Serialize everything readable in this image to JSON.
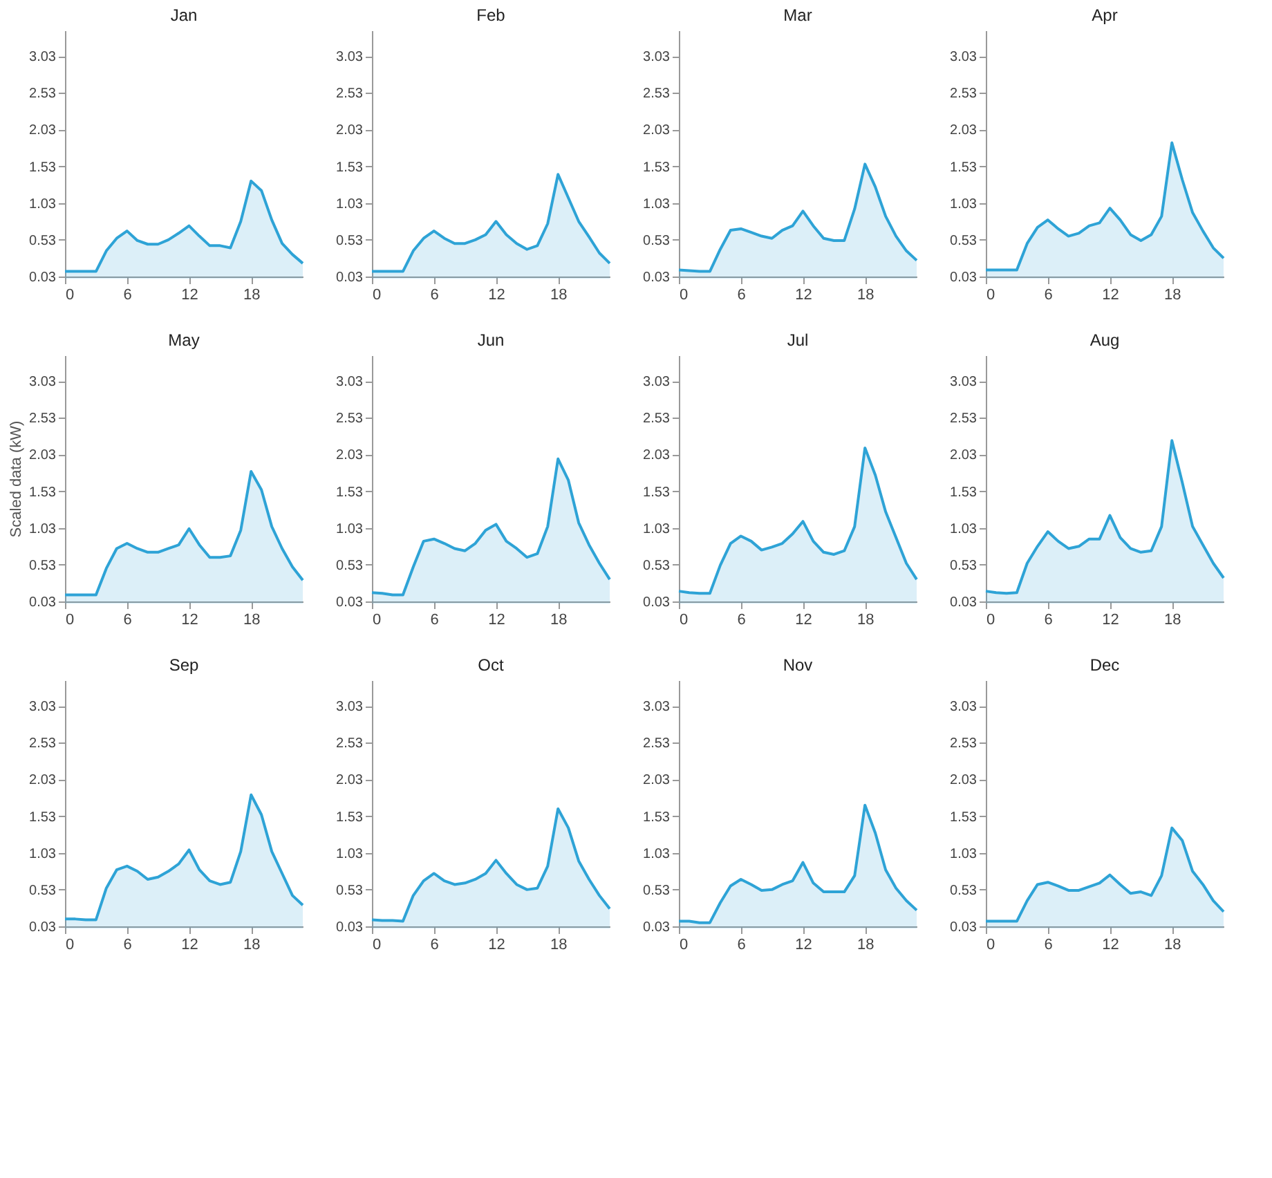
{
  "chart_data": [
    {
      "type": "area",
      "title": "Jan",
      "x": [
        0,
        1,
        2,
        3,
        4,
        5,
        6,
        7,
        8,
        9,
        10,
        11,
        12,
        13,
        14,
        15,
        16,
        17,
        18,
        19,
        20,
        21,
        22,
        23
      ],
      "series": [
        {
          "color": "#2ea3d6",
          "values": [
            0.1,
            0.1,
            0.1,
            0.1,
            0.38,
            0.55,
            0.65,
            0.52,
            0.47,
            0.47,
            0.53,
            0.62,
            0.72,
            0.58,
            0.45,
            0.45,
            0.42,
            0.78,
            1.33,
            1.2,
            0.8,
            0.48,
            0.33,
            0.21
          ]
        }
      ],
      "xlim": [
        0,
        23
      ],
      "xticks": [
        0,
        6,
        12,
        18
      ],
      "ylim": [
        0.03,
        3.38
      ],
      "yticks": [
        0.03,
        0.53,
        1.03,
        1.53,
        2.03,
        2.53,
        3.03
      ],
      "grid": false
    },
    {
      "type": "area",
      "title": "Feb",
      "x": [
        0,
        1,
        2,
        3,
        4,
        5,
        6,
        7,
        8,
        9,
        10,
        11,
        12,
        13,
        14,
        15,
        16,
        17,
        18,
        19,
        20,
        21,
        22,
        23
      ],
      "series": [
        {
          "color": "#2ea3d6",
          "values": [
            0.1,
            0.1,
            0.1,
            0.1,
            0.38,
            0.55,
            0.65,
            0.55,
            0.48,
            0.48,
            0.53,
            0.6,
            0.78,
            0.6,
            0.48,
            0.4,
            0.45,
            0.75,
            1.42,
            1.1,
            0.78,
            0.57,
            0.35,
            0.21
          ]
        }
      ],
      "xlim": [
        0,
        23
      ],
      "xticks": [
        0,
        6,
        12,
        18
      ],
      "ylim": [
        0.03,
        3.38
      ],
      "yticks": [
        0.03,
        0.53,
        1.03,
        1.53,
        2.03,
        2.53,
        3.03
      ],
      "grid": false
    },
    {
      "type": "area",
      "title": "Mar",
      "x": [
        0,
        1,
        2,
        3,
        4,
        5,
        6,
        7,
        8,
        9,
        10,
        11,
        12,
        13,
        14,
        15,
        16,
        17,
        18,
        19,
        20,
        21,
        22,
        23
      ],
      "series": [
        {
          "color": "#2ea3d6",
          "values": [
            0.12,
            0.11,
            0.1,
            0.1,
            0.4,
            0.66,
            0.68,
            0.63,
            0.58,
            0.55,
            0.66,
            0.72,
            0.92,
            0.72,
            0.55,
            0.52,
            0.52,
            0.95,
            1.56,
            1.25,
            0.85,
            0.58,
            0.38,
            0.25
          ]
        }
      ],
      "xlim": [
        0,
        23
      ],
      "xticks": [
        0,
        6,
        12,
        18
      ],
      "ylim": [
        0.03,
        3.38
      ],
      "yticks": [
        0.03,
        0.53,
        1.03,
        1.53,
        2.03,
        2.53,
        3.03
      ],
      "grid": false
    },
    {
      "type": "area",
      "title": "Apr",
      "x": [
        0,
        1,
        2,
        3,
        4,
        5,
        6,
        7,
        8,
        9,
        10,
        11,
        12,
        13,
        14,
        15,
        16,
        17,
        18,
        19,
        20,
        21,
        22,
        23
      ],
      "series": [
        {
          "color": "#2ea3d6",
          "values": [
            0.12,
            0.12,
            0.12,
            0.12,
            0.48,
            0.7,
            0.8,
            0.68,
            0.58,
            0.62,
            0.72,
            0.76,
            0.96,
            0.8,
            0.6,
            0.52,
            0.6,
            0.85,
            1.85,
            1.35,
            0.9,
            0.65,
            0.42,
            0.28
          ]
        }
      ],
      "xlim": [
        0,
        23
      ],
      "xticks": [
        0,
        6,
        12,
        18
      ],
      "ylim": [
        0.03,
        3.38
      ],
      "yticks": [
        0.03,
        0.53,
        1.03,
        1.53,
        2.03,
        2.53,
        3.03
      ],
      "grid": false
    },
    {
      "type": "area",
      "title": "May",
      "ylabel": "Scaled data (kW)",
      "x": [
        0,
        1,
        2,
        3,
        4,
        5,
        6,
        7,
        8,
        9,
        10,
        11,
        12,
        13,
        14,
        15,
        16,
        17,
        18,
        19,
        20,
        21,
        22,
        23
      ],
      "series": [
        {
          "color": "#2ea3d6",
          "values": [
            0.12,
            0.12,
            0.12,
            0.12,
            0.48,
            0.75,
            0.82,
            0.75,
            0.7,
            0.7,
            0.75,
            0.8,
            1.02,
            0.8,
            0.63,
            0.63,
            0.65,
            1.0,
            1.8,
            1.55,
            1.05,
            0.75,
            0.5,
            0.32
          ]
        }
      ],
      "xlim": [
        0,
        23
      ],
      "xticks": [
        0,
        6,
        12,
        18
      ],
      "ylim": [
        0.03,
        3.38
      ],
      "yticks": [
        0.03,
        0.53,
        1.03,
        1.53,
        2.03,
        2.53,
        3.03
      ],
      "grid": false
    },
    {
      "type": "area",
      "title": "Jun",
      "x": [
        0,
        1,
        2,
        3,
        4,
        5,
        6,
        7,
        8,
        9,
        10,
        11,
        12,
        13,
        14,
        15,
        16,
        17,
        18,
        19,
        20,
        21,
        22,
        23
      ],
      "series": [
        {
          "color": "#2ea3d6",
          "values": [
            0.15,
            0.14,
            0.12,
            0.12,
            0.5,
            0.85,
            0.88,
            0.82,
            0.75,
            0.72,
            0.82,
            1.0,
            1.08,
            0.85,
            0.75,
            0.63,
            0.68,
            1.05,
            1.97,
            1.68,
            1.1,
            0.8,
            0.55,
            0.33
          ]
        }
      ],
      "xlim": [
        0,
        23
      ],
      "xticks": [
        0,
        6,
        12,
        18
      ],
      "ylim": [
        0.03,
        3.38
      ],
      "yticks": [
        0.03,
        0.53,
        1.03,
        1.53,
        2.03,
        2.53,
        3.03
      ],
      "grid": false
    },
    {
      "type": "area",
      "title": "Jul",
      "x": [
        0,
        1,
        2,
        3,
        4,
        5,
        6,
        7,
        8,
        9,
        10,
        11,
        12,
        13,
        14,
        15,
        16,
        17,
        18,
        19,
        20,
        21,
        22,
        23
      ],
      "series": [
        {
          "color": "#2ea3d6",
          "values": [
            0.17,
            0.15,
            0.14,
            0.14,
            0.52,
            0.82,
            0.92,
            0.85,
            0.73,
            0.77,
            0.82,
            0.95,
            1.12,
            0.85,
            0.7,
            0.67,
            0.72,
            1.05,
            2.12,
            1.75,
            1.25,
            0.9,
            0.55,
            0.33
          ]
        }
      ],
      "xlim": [
        0,
        23
      ],
      "xticks": [
        0,
        6,
        12,
        18
      ],
      "ylim": [
        0.03,
        3.38
      ],
      "yticks": [
        0.03,
        0.53,
        1.03,
        1.53,
        2.03,
        2.53,
        3.03
      ],
      "grid": false
    },
    {
      "type": "area",
      "title": "Aug",
      "x": [
        0,
        1,
        2,
        3,
        4,
        5,
        6,
        7,
        8,
        9,
        10,
        11,
        12,
        13,
        14,
        15,
        16,
        17,
        18,
        19,
        20,
        21,
        22,
        23
      ],
      "series": [
        {
          "color": "#2ea3d6",
          "values": [
            0.17,
            0.15,
            0.14,
            0.15,
            0.55,
            0.78,
            0.98,
            0.85,
            0.75,
            0.78,
            0.88,
            0.88,
            1.2,
            0.9,
            0.75,
            0.7,
            0.72,
            1.05,
            2.22,
            1.65,
            1.05,
            0.8,
            0.55,
            0.35
          ]
        }
      ],
      "xlim": [
        0,
        23
      ],
      "xticks": [
        0,
        6,
        12,
        18
      ],
      "ylim": [
        0.03,
        3.38
      ],
      "yticks": [
        0.03,
        0.53,
        1.03,
        1.53,
        2.03,
        2.53,
        3.03
      ],
      "grid": false
    },
    {
      "type": "area",
      "title": "Sep",
      "x": [
        0,
        1,
        2,
        3,
        4,
        5,
        6,
        7,
        8,
        9,
        10,
        11,
        12,
        13,
        14,
        15,
        16,
        17,
        18,
        19,
        20,
        21,
        22,
        23
      ],
      "series": [
        {
          "color": "#2ea3d6",
          "values": [
            0.13,
            0.13,
            0.12,
            0.12,
            0.55,
            0.8,
            0.85,
            0.78,
            0.67,
            0.7,
            0.78,
            0.88,
            1.07,
            0.8,
            0.65,
            0.6,
            0.63,
            1.05,
            1.82,
            1.55,
            1.05,
            0.75,
            0.45,
            0.32
          ]
        }
      ],
      "xlim": [
        0,
        23
      ],
      "xticks": [
        0,
        6,
        12,
        18
      ],
      "ylim": [
        0.03,
        3.38
      ],
      "yticks": [
        0.03,
        0.53,
        1.03,
        1.53,
        2.03,
        2.53,
        3.03
      ],
      "grid": false
    },
    {
      "type": "area",
      "title": "Oct",
      "x": [
        0,
        1,
        2,
        3,
        4,
        5,
        6,
        7,
        8,
        9,
        10,
        11,
        12,
        13,
        14,
        15,
        16,
        17,
        18,
        19,
        20,
        21,
        22,
        23
      ],
      "series": [
        {
          "color": "#2ea3d6",
          "values": [
            0.12,
            0.11,
            0.11,
            0.1,
            0.45,
            0.65,
            0.75,
            0.65,
            0.6,
            0.62,
            0.67,
            0.75,
            0.93,
            0.75,
            0.6,
            0.53,
            0.55,
            0.85,
            1.63,
            1.37,
            0.92,
            0.67,
            0.45,
            0.27
          ]
        }
      ],
      "xlim": [
        0,
        23
      ],
      "xticks": [
        0,
        6,
        12,
        18
      ],
      "ylim": [
        0.03,
        3.38
      ],
      "yticks": [
        0.03,
        0.53,
        1.03,
        1.53,
        2.03,
        2.53,
        3.03
      ],
      "grid": false
    },
    {
      "type": "area",
      "title": "Nov",
      "x": [
        0,
        1,
        2,
        3,
        4,
        5,
        6,
        7,
        8,
        9,
        10,
        11,
        12,
        13,
        14,
        15,
        16,
        17,
        18,
        19,
        20,
        21,
        22,
        23
      ],
      "series": [
        {
          "color": "#2ea3d6",
          "values": [
            0.1,
            0.1,
            0.08,
            0.08,
            0.35,
            0.58,
            0.67,
            0.6,
            0.52,
            0.53,
            0.6,
            0.65,
            0.9,
            0.62,
            0.5,
            0.5,
            0.5,
            0.72,
            1.68,
            1.3,
            0.8,
            0.55,
            0.38,
            0.25
          ]
        }
      ],
      "xlim": [
        0,
        23
      ],
      "xticks": [
        0,
        6,
        12,
        18
      ],
      "ylim": [
        0.03,
        3.38
      ],
      "yticks": [
        0.03,
        0.53,
        1.03,
        1.53,
        2.03,
        2.53,
        3.03
      ],
      "grid": false
    },
    {
      "type": "area",
      "title": "Dec",
      "x": [
        0,
        1,
        2,
        3,
        4,
        5,
        6,
        7,
        8,
        9,
        10,
        11,
        12,
        13,
        14,
        15,
        16,
        17,
        18,
        19,
        20,
        21,
        22,
        23
      ],
      "series": [
        {
          "color": "#2ea3d6",
          "values": [
            0.1,
            0.1,
            0.1,
            0.1,
            0.38,
            0.6,
            0.63,
            0.58,
            0.52,
            0.52,
            0.57,
            0.62,
            0.73,
            0.6,
            0.48,
            0.5,
            0.45,
            0.72,
            1.37,
            1.2,
            0.78,
            0.6,
            0.38,
            0.23
          ]
        }
      ],
      "xlim": [
        0,
        23
      ],
      "xticks": [
        0,
        6,
        12,
        18
      ],
      "ylim": [
        0.03,
        3.38
      ],
      "yticks": [
        0.03,
        0.53,
        1.03,
        1.53,
        2.03,
        2.53,
        3.03
      ],
      "grid": false
    }
  ]
}
